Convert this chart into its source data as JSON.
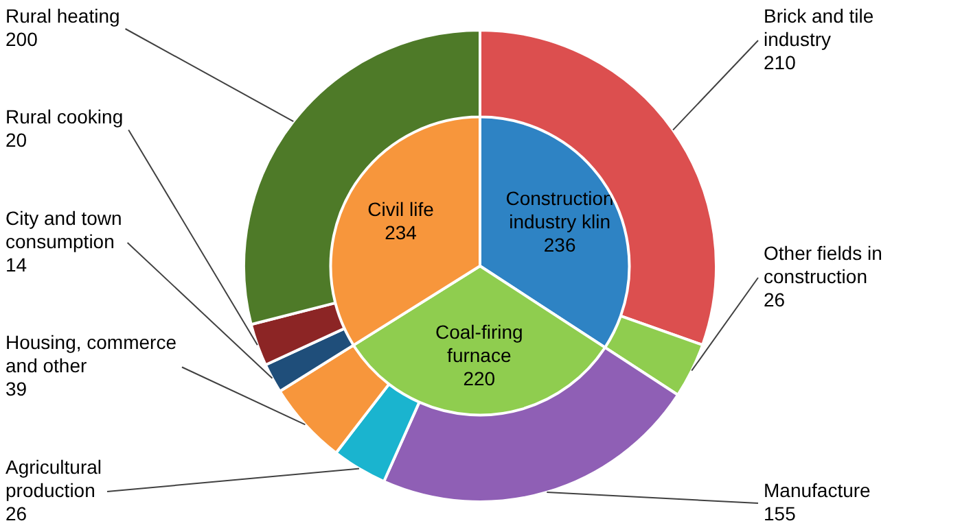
{
  "chart_data": [
    {
      "type": "pie",
      "categories": [
        "Construction industry klin",
        "Coal-firing furnace",
        "Civil life"
      ],
      "values": [
        236,
        220,
        234
      ],
      "colors": [
        "#2e83c4",
        "#8fcd4f",
        "#f7963c"
      ],
      "data_labels": true
    },
    {
      "type": "donut",
      "categories": [
        "Brick and tile industry",
        "Other fields in construction",
        "Manufacture",
        "Agricultural production",
        "Housing, commerce and other",
        "City and town consumption",
        "Rural cooking",
        "Rural heating"
      ],
      "values": [
        210,
        26,
        155,
        26,
        39,
        14,
        20,
        200
      ],
      "colors": [
        "#dc4f4f",
        "#8fcd4f",
        "#8f5fb5",
        "#1ab4cf",
        "#f7963c",
        "#1f4e7a",
        "#8c2525",
        "#4e7a28"
      ],
      "data_labels": true
    }
  ]
}
